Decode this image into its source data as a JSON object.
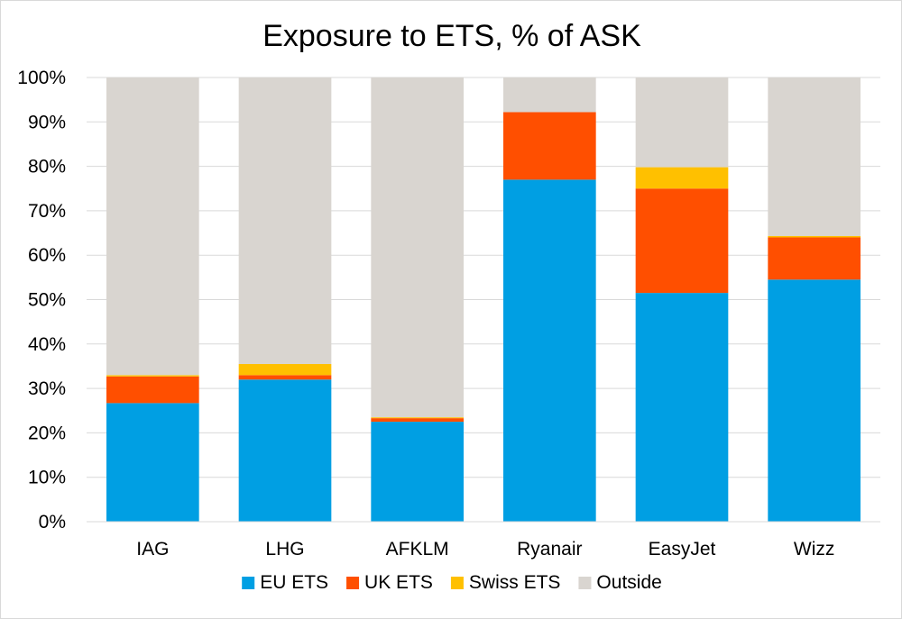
{
  "chart_data": {
    "type": "bar",
    "stacked": true,
    "title": "Exposure to ETS, % of ASK",
    "xlabel": "",
    "ylabel": "",
    "ylim": [
      0,
      100
    ],
    "yticks": [
      "0%",
      "10%",
      "20%",
      "30%",
      "40%",
      "50%",
      "60%",
      "70%",
      "80%",
      "90%",
      "100%"
    ],
    "grid": true,
    "legend_position": "bottom",
    "categories": [
      "IAG",
      "LHG",
      "AFKLM",
      "Ryanair",
      "EasyJet",
      "Wizz"
    ],
    "series": [
      {
        "name": "EU ETS",
        "color": "#009FE3",
        "values": [
          26.7,
          32.0,
          22.5,
          77.0,
          51.5,
          54.5
        ]
      },
      {
        "name": "UK ETS",
        "color": "#FF4F00",
        "values": [
          6.0,
          1.0,
          0.8,
          15.2,
          23.5,
          9.5
        ]
      },
      {
        "name": "Swiss ETS",
        "color": "#FFC000",
        "values": [
          0.3,
          2.5,
          0.2,
          0.0,
          4.8,
          0.3
        ]
      },
      {
        "name": "Outside",
        "color": "#D9D5D0",
        "values": [
          67.0,
          64.5,
          76.5,
          7.8,
          20.2,
          35.7
        ]
      }
    ]
  }
}
